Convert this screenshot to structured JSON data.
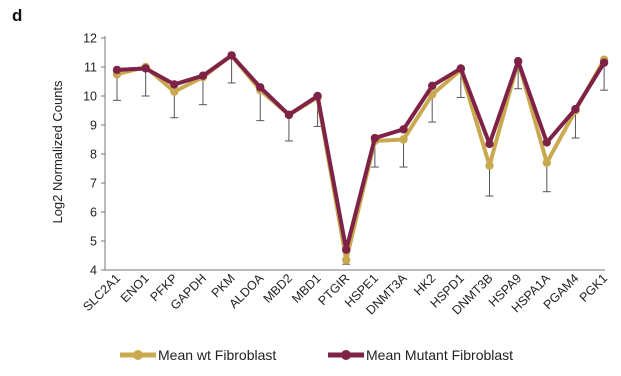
{
  "panel_label": "d",
  "chart_data": {
    "type": "line",
    "title": "",
    "xlabel": "",
    "ylabel": "Log2 Normalized Counts",
    "ylim": [
      4,
      12
    ],
    "yticks": [
      4,
      5,
      6,
      7,
      8,
      9,
      10,
      11,
      12
    ],
    "grid": false,
    "legend_position": "bottom",
    "categories": [
      "SLC2A1",
      "ENO1",
      "PFKP",
      "GAPDH",
      "PKM",
      "ALDOA",
      "MBD2",
      "MBD1",
      "PTGIR",
      "HSPE1",
      "DNMT3A",
      "HK2",
      "HSPD1",
      "DNMT3B",
      "HSPA9",
      "HSPA1A",
      "PGAM4",
      "PGK1"
    ],
    "series": [
      {
        "name": "Mean wt Fibroblast",
        "color": "#c9a84f",
        "values": [
          10.75,
          11.0,
          10.15,
          10.65,
          11.4,
          10.2,
          9.35,
          9.95,
          4.35,
          8.45,
          8.5,
          10.05,
          10.9,
          7.6,
          11.2,
          7.7,
          9.5,
          11.25
        ],
        "error_lower": [
          9.85,
          10.0,
          9.25,
          9.7,
          10.45,
          9.15,
          8.45,
          8.95,
          4.2,
          7.55,
          7.55,
          9.1,
          9.95,
          6.55,
          10.25,
          6.7,
          8.55,
          10.2
        ]
      },
      {
        "name": "Mean Mutant Fibroblast",
        "color": "#7e2248",
        "values": [
          10.9,
          10.95,
          10.4,
          10.7,
          11.4,
          10.3,
          9.35,
          10.0,
          4.7,
          8.55,
          8.85,
          10.35,
          10.95,
          8.35,
          11.2,
          8.4,
          9.55,
          11.15
        ]
      }
    ]
  }
}
